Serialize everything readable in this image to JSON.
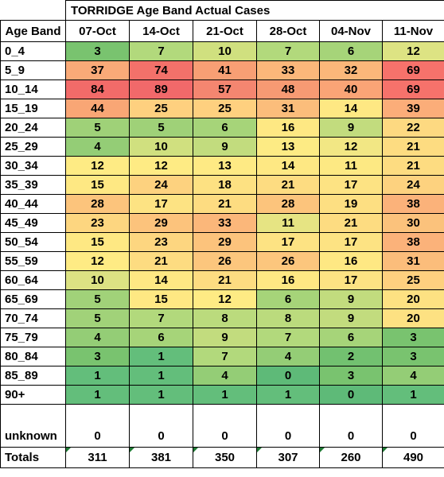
{
  "title": "TORRIDGE Age Band Actual Cases",
  "header": {
    "band_label": "Age Band",
    "weeks": [
      "07-Oct",
      "14-Oct",
      "21-Oct",
      "28-Oct",
      "04-Nov",
      "11-Nov"
    ]
  },
  "rows": [
    {
      "band": "0_4",
      "values": [
        "3",
        "7",
        "10",
        "7",
        "6",
        "12"
      ],
      "colors": [
        "#79c36f",
        "#b2d97c",
        "#d0e07f",
        "#b2d97c",
        "#a6d479",
        "#dde383"
      ]
    },
    {
      "band": "5_9",
      "values": [
        "37",
        "74",
        "41",
        "33",
        "32",
        "69"
      ],
      "colors": [
        "#f9aa78",
        "#f3716a",
        "#f89f74",
        "#fbb77a",
        "#fbb77a",
        "#f6726b"
      ]
    },
    {
      "band": "10_14",
      "values": [
        "84",
        "89",
        "57",
        "48",
        "40",
        "69"
      ],
      "colors": [
        "#f26b69",
        "#f1696a",
        "#f48670",
        "#f79a73",
        "#faa476",
        "#f6726b"
      ]
    },
    {
      "band": "15_19",
      "values": [
        "44",
        "25",
        "25",
        "31",
        "14",
        "39"
      ],
      "colors": [
        "#f9a675",
        "#fed07f",
        "#fed07f",
        "#fbbd7b",
        "#fee883",
        "#fbad79"
      ]
    },
    {
      "band": "20_24",
      "values": [
        "5",
        "5",
        "6",
        "16",
        "9",
        "22"
      ],
      "colors": [
        "#9fd178",
        "#9fd178",
        "#a6d479",
        "#fee883",
        "#c2dc7e",
        "#fdd981"
      ]
    },
    {
      "band": "25_29",
      "values": [
        "4",
        "10",
        "9",
        "13",
        "12",
        "21"
      ],
      "colors": [
        "#94cd76",
        "#d0e07f",
        "#c2dc7e",
        "#fdeb84",
        "#f2e784",
        "#fddc81"
      ]
    },
    {
      "band": "30_34",
      "values": [
        "12",
        "12",
        "13",
        "14",
        "11",
        "21"
      ],
      "colors": [
        "#feeb84",
        "#feeb84",
        "#feea84",
        "#fee883",
        "#fde983",
        "#fddc81"
      ]
    },
    {
      "band": "35_39",
      "values": [
        "15",
        "24",
        "18",
        "21",
        "17",
        "24"
      ],
      "colors": [
        "#fee883",
        "#fdd27f",
        "#fde182",
        "#fddc81",
        "#fde383",
        "#fdd27f"
      ]
    },
    {
      "band": "40_44",
      "values": [
        "28",
        "17",
        "21",
        "28",
        "19",
        "38"
      ],
      "colors": [
        "#fcc47c",
        "#fde383",
        "#fddc81",
        "#fcc47c",
        "#fddf82",
        "#fbb27a"
      ]
    },
    {
      "band": "45_49",
      "values": [
        "23",
        "29",
        "33",
        "11",
        "21",
        "30"
      ],
      "colors": [
        "#fdd680",
        "#fcc37c",
        "#fbb77a",
        "#e6e483",
        "#fddc81",
        "#fbc27c"
      ]
    },
    {
      "band": "50_54",
      "values": [
        "15",
        "23",
        "29",
        "17",
        "17",
        "38"
      ],
      "colors": [
        "#fee883",
        "#fdd680",
        "#fcc37c",
        "#fde383",
        "#fde383",
        "#fbb27a"
      ]
    },
    {
      "band": "55_59",
      "values": [
        "12",
        "21",
        "26",
        "26",
        "16",
        "31"
      ],
      "colors": [
        "#feeb84",
        "#fddc81",
        "#fcc67d",
        "#fcc67d",
        "#fee883",
        "#fbbd7b"
      ]
    },
    {
      "band": "60_64",
      "values": [
        "10",
        "14",
        "21",
        "16",
        "17",
        "25"
      ],
      "colors": [
        "#dce283",
        "#fee883",
        "#fddc81",
        "#fee883",
        "#fde383",
        "#fed07f"
      ]
    },
    {
      "band": "65_69",
      "values": [
        "5",
        "15",
        "12",
        "6",
        "9",
        "20"
      ],
      "colors": [
        "#a1d279",
        "#fee883",
        "#feeb84",
        "#a6d479",
        "#c2dc7e",
        "#fde182"
      ]
    },
    {
      "band": "70_74",
      "values": [
        "5",
        "7",
        "8",
        "8",
        "9",
        "20"
      ],
      "colors": [
        "#a1d279",
        "#b2d97c",
        "#bbdb7d",
        "#bbdb7d",
        "#c2dc7e",
        "#fde182"
      ]
    },
    {
      "band": "75_79",
      "values": [
        "4",
        "6",
        "9",
        "7",
        "6",
        "3"
      ],
      "colors": [
        "#94cd76",
        "#a6d479",
        "#c2dc7e",
        "#b2d97c",
        "#a6d479",
        "#79c36f"
      ]
    },
    {
      "band": "80_84",
      "values": [
        "3",
        "1",
        "7",
        "4",
        "2",
        "3"
      ],
      "colors": [
        "#79c36f",
        "#63be7b",
        "#b2d97c",
        "#94cd76",
        "#72c170",
        "#79c36f"
      ]
    },
    {
      "band": "85_89",
      "values": [
        "1",
        "1",
        "4",
        "0",
        "3",
        "4"
      ],
      "colors": [
        "#63be7b",
        "#63be7b",
        "#94cd76",
        "#5eba78",
        "#79c36f",
        "#94cd76"
      ]
    },
    {
      "band": "90+",
      "values": [
        "1",
        "1",
        "1",
        "1",
        "0",
        "1"
      ],
      "colors": [
        "#63be7b",
        "#63be7b",
        "#63be7b",
        "#63be7b",
        "#5eba78",
        "#63be7b"
      ]
    }
  ],
  "unknown": {
    "band": "unknown",
    "values": [
      "0",
      "0",
      "0",
      "0",
      "0",
      "0"
    ]
  },
  "totals": {
    "band": "Totals",
    "values": [
      "311",
      "381",
      "350",
      "307",
      "260",
      "490"
    ]
  }
}
